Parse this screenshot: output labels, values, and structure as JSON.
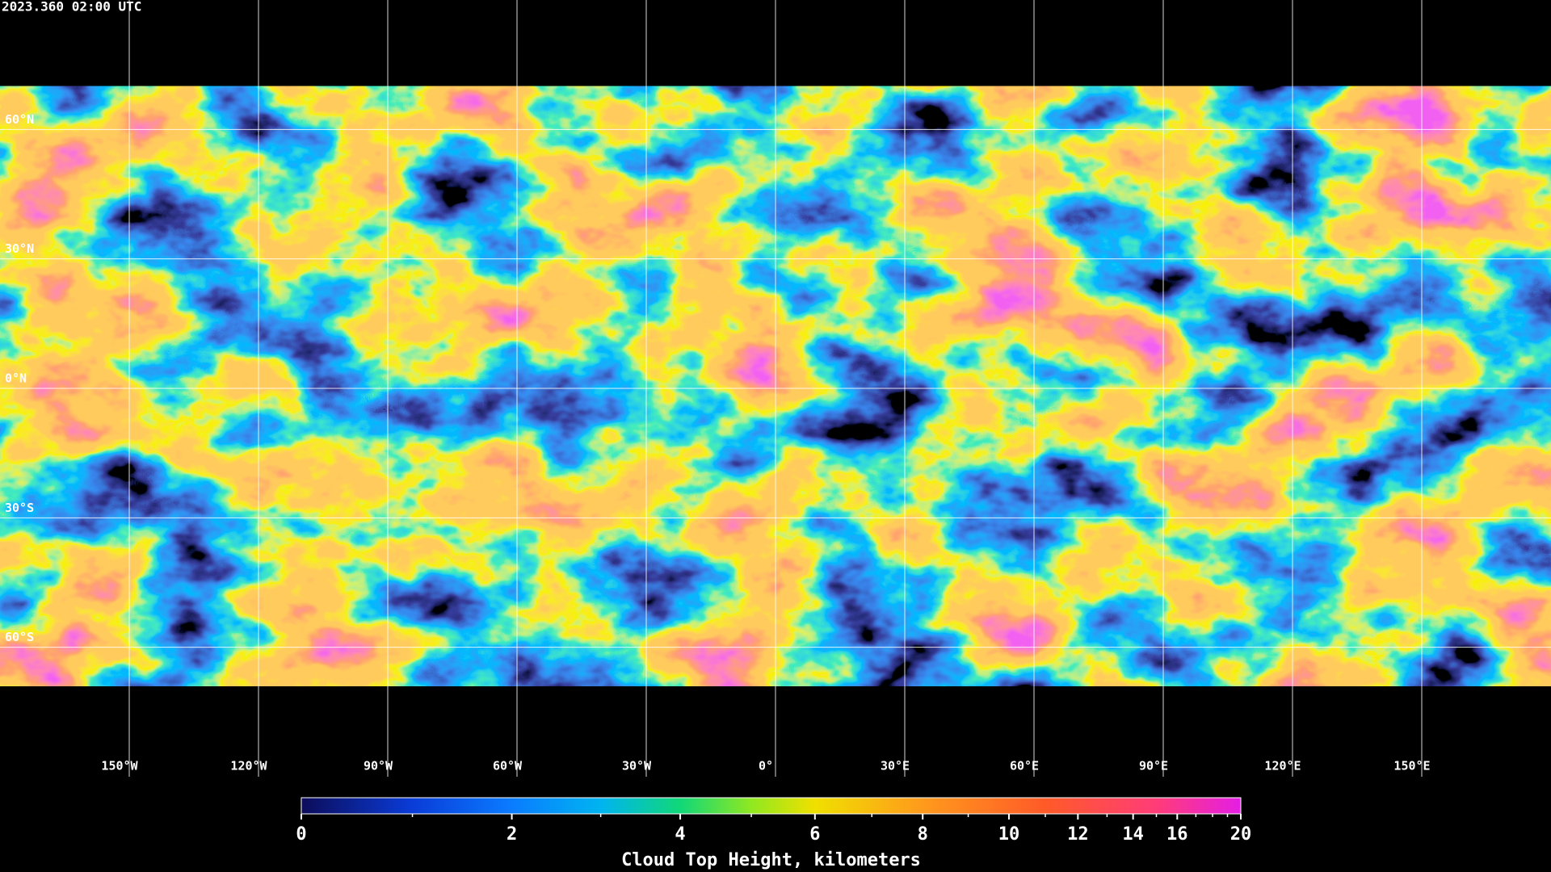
{
  "map": {
    "timestamp": "2023.360 02:00 UTC",
    "lonlim": [
      -180,
      180
    ],
    "latlim": [
      90,
      -90
    ],
    "data_latlim": [
      70,
      -69
    ],
    "lon_ticks": [
      {
        "value": -150,
        "label": "150°W"
      },
      {
        "value": -120,
        "label": "120°W"
      },
      {
        "value": -90,
        "label": "90°W"
      },
      {
        "value": -60,
        "label": "60°W"
      },
      {
        "value": -30,
        "label": "30°W"
      },
      {
        "value": 0,
        "label": "0°"
      },
      {
        "value": 30,
        "label": "30°E"
      },
      {
        "value": 60,
        "label": "60°E"
      },
      {
        "value": 90,
        "label": "90°E"
      },
      {
        "value": 120,
        "label": "120°E"
      },
      {
        "value": 150,
        "label": "150°E"
      }
    ],
    "lat_ticks": [
      {
        "value": 60,
        "label": "60°N"
      },
      {
        "value": 30,
        "label": "30°N"
      },
      {
        "value": 0,
        "label": "0°N"
      },
      {
        "value": -30,
        "label": "30°S"
      },
      {
        "value": -60,
        "label": "60°S"
      }
    ],
    "colorbar": {
      "title": "Cloud Top Height, kilometers",
      "lim": [
        0,
        20
      ],
      "ticks": [
        0,
        2,
        4,
        6,
        8,
        10,
        12,
        14,
        16,
        20
      ],
      "minor_ticks": [
        1,
        3,
        5,
        7,
        9,
        11,
        13,
        15,
        17,
        18,
        19
      ],
      "colormap": [
        {
          "value": 0,
          "color": "#0c0c5a"
        },
        {
          "value": 1,
          "color": "#0a3cd8"
        },
        {
          "value": 2,
          "color": "#0a7cff"
        },
        {
          "value": 3,
          "color": "#00b4f0"
        },
        {
          "value": 4,
          "color": "#10d878"
        },
        {
          "value": 5,
          "color": "#90e820"
        },
        {
          "value": 6,
          "color": "#f0e000"
        },
        {
          "value": 8,
          "color": "#ff9a1c"
        },
        {
          "value": 11,
          "color": "#ff5a28"
        },
        {
          "value": 15,
          "color": "#ff3c78"
        },
        {
          "value": 20,
          "color": "#e41ee4"
        }
      ]
    }
  }
}
